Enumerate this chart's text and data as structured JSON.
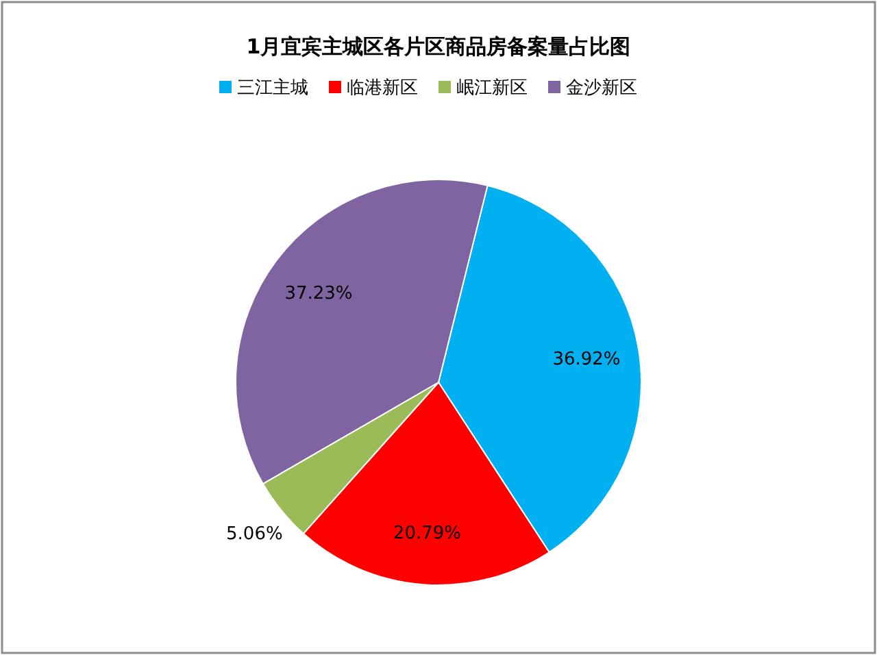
{
  "chart_data": {
    "type": "pie",
    "title": "1月宜宾主城区各片区商品房备案量占比图",
    "categories": [
      "三江主城",
      "临港新区",
      "岷江新区",
      "金沙新区"
    ],
    "values": [
      36.92,
      20.79,
      5.06,
      37.23
    ],
    "colors": [
      "#00b0f0",
      "#ff0000",
      "#9bbb59",
      "#8064a2"
    ],
    "value_labels": [
      "36.92%",
      "20.79%",
      "5.06%",
      "37.23%"
    ],
    "legend": "top"
  }
}
